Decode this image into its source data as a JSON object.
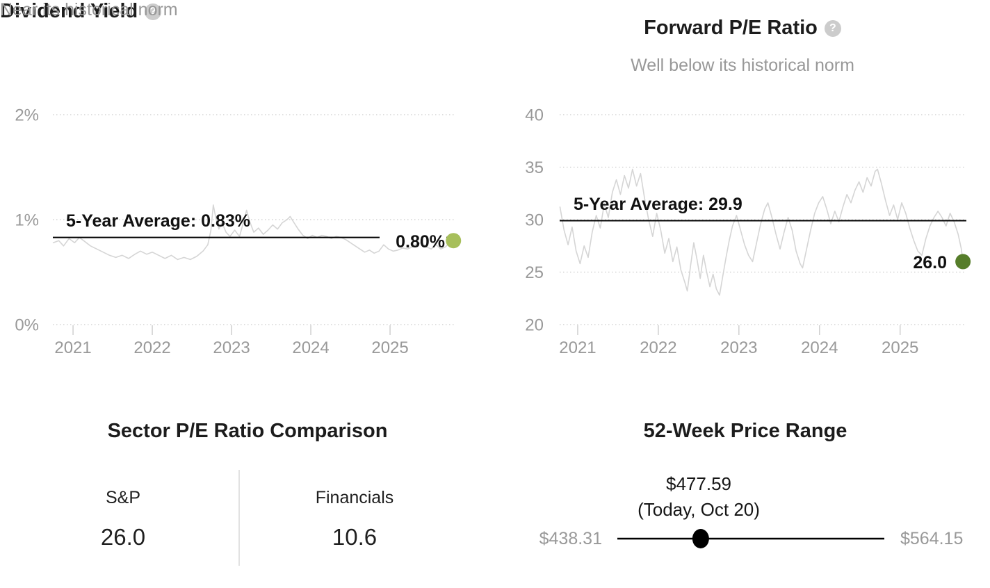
{
  "panels": {
    "dividend_yield": {
      "title": "Dividend Yield",
      "subtitle": "Near its historical norm",
      "help_icon": "?",
      "avg_label": "5-Year Average: 0.83%",
      "current_label": "0.80%"
    },
    "forward_pe": {
      "title": "Forward P/E Ratio",
      "subtitle": "Well below its historical norm",
      "help_icon": "?",
      "avg_label": "5-Year Average: 29.9",
      "current_label": "26.0"
    },
    "sector_comparison": {
      "title": "Sector P/E Ratio Comparison",
      "columns": [
        {
          "label": "S&P",
          "value": "26.0"
        },
        {
          "label": "Financials",
          "value": "10.6"
        }
      ]
    },
    "price_range": {
      "title": "52-Week Price Range",
      "current_price": "$477.59",
      "current_date": "(Today, Oct 20)",
      "low": "$438.31",
      "high": "$564.15"
    }
  },
  "colors": {
    "dividend_dot": "#a7bf5b",
    "pe_dot": "#567d2a",
    "series_line": "#d5d5d5",
    "average_line": "#000000",
    "grid": "#cccccc",
    "axis_text": "#999999"
  },
  "chart_data": [
    {
      "type": "line",
      "title": "Dividend Yield",
      "subtitle": "Near its historical norm",
      "x_range": [
        2020.745,
        2025.833
      ],
      "y_range": [
        0,
        2
      ],
      "grid": true,
      "y_ticks": [
        {
          "v": 0,
          "label": "0%"
        },
        {
          "v": 1,
          "label": "1%"
        },
        {
          "v": 2,
          "label": "2%"
        }
      ],
      "x_ticks": [
        {
          "v": 2021,
          "label": "2021"
        },
        {
          "v": 2022,
          "label": "2022"
        },
        {
          "v": 2023,
          "label": "2023"
        },
        {
          "v": 2024,
          "label": "2024"
        },
        {
          "v": 2025,
          "label": "2025"
        }
      ],
      "average": {
        "value": 0.83,
        "label": "5-Year Average: 0.83%"
      },
      "current": {
        "x": 2025.8,
        "value": 0.8,
        "label": "0.80%",
        "dot_color": "#a7bf5b"
      },
      "line_color": "#d5d5d5",
      "points": [
        [
          2020.75,
          0.78
        ],
        [
          2020.82,
          0.8
        ],
        [
          2020.88,
          0.75
        ],
        [
          2020.95,
          0.82
        ],
        [
          2021.02,
          0.78
        ],
        [
          2021.08,
          0.83
        ],
        [
          2021.15,
          0.79
        ],
        [
          2021.22,
          0.75
        ],
        [
          2021.3,
          0.72
        ],
        [
          2021.38,
          0.69
        ],
        [
          2021.46,
          0.66
        ],
        [
          2021.54,
          0.64
        ],
        [
          2021.62,
          0.66
        ],
        [
          2021.7,
          0.63
        ],
        [
          2021.78,
          0.67
        ],
        [
          2021.85,
          0.7
        ],
        [
          2021.93,
          0.67
        ],
        [
          2022.0,
          0.69
        ],
        [
          2022.08,
          0.66
        ],
        [
          2022.16,
          0.63
        ],
        [
          2022.24,
          0.66
        ],
        [
          2022.32,
          0.62
        ],
        [
          2022.4,
          0.64
        ],
        [
          2022.48,
          0.62
        ],
        [
          2022.56,
          0.65
        ],
        [
          2022.64,
          0.7
        ],
        [
          2022.7,
          0.76
        ],
        [
          2022.74,
          0.9
        ],
        [
          2022.77,
          1.14
        ],
        [
          2022.8,
          1.02
        ],
        [
          2022.84,
          0.91
        ],
        [
          2022.88,
          0.97
        ],
        [
          2022.93,
          0.88
        ],
        [
          2022.98,
          0.84
        ],
        [
          2023.04,
          0.9
        ],
        [
          2023.1,
          0.84
        ],
        [
          2023.16,
          1.0
        ],
        [
          2023.19,
          1.09
        ],
        [
          2023.23,
          0.98
        ],
        [
          2023.28,
          0.88
        ],
        [
          2023.34,
          0.92
        ],
        [
          2023.4,
          0.86
        ],
        [
          2023.46,
          0.9
        ],
        [
          2023.52,
          0.95
        ],
        [
          2023.58,
          0.91
        ],
        [
          2023.64,
          0.97
        ],
        [
          2023.7,
          1.0
        ],
        [
          2023.74,
          1.03
        ],
        [
          2023.78,
          0.98
        ],
        [
          2023.84,
          0.91
        ],
        [
          2023.9,
          0.85
        ],
        [
          2023.96,
          0.82
        ],
        [
          2024.02,
          0.85
        ],
        [
          2024.08,
          0.83
        ],
        [
          2024.14,
          0.85
        ],
        [
          2024.2,
          0.84
        ],
        [
          2024.26,
          0.82
        ],
        [
          2024.32,
          0.84
        ],
        [
          2024.38,
          0.83
        ],
        [
          2024.44,
          0.81
        ],
        [
          2024.5,
          0.78
        ],
        [
          2024.56,
          0.75
        ],
        [
          2024.62,
          0.72
        ],
        [
          2024.68,
          0.69
        ],
        [
          2024.74,
          0.71
        ],
        [
          2024.8,
          0.68
        ],
        [
          2024.86,
          0.7
        ],
        [
          2024.92,
          0.76
        ],
        [
          2024.98,
          0.72
        ],
        [
          2025.04,
          0.7
        ],
        [
          2025.1,
          0.71
        ],
        [
          2025.16,
          0.73
        ],
        [
          2025.22,
          0.72
        ],
        [
          2025.28,
          0.74
        ],
        [
          2025.34,
          0.77
        ],
        [
          2025.4,
          0.78
        ],
        [
          2025.46,
          0.74
        ],
        [
          2025.52,
          0.72
        ],
        [
          2025.58,
          0.76
        ],
        [
          2025.64,
          0.72
        ],
        [
          2025.7,
          0.74
        ],
        [
          2025.76,
          0.79
        ],
        [
          2025.8,
          0.8
        ]
      ]
    },
    {
      "type": "line",
      "title": "Forward P/E Ratio",
      "subtitle": "Well below its historical norm",
      "x_range": [
        2020.776,
        2025.822
      ],
      "y_range": [
        20,
        40
      ],
      "grid": true,
      "y_ticks": [
        {
          "v": 20,
          "label": "20"
        },
        {
          "v": 25,
          "label": "25"
        },
        {
          "v": 30,
          "label": "30"
        },
        {
          "v": 35,
          "label": "35"
        },
        {
          "v": 40,
          "label": "40"
        }
      ],
      "x_ticks": [
        {
          "v": 2021,
          "label": "2021"
        },
        {
          "v": 2022,
          "label": "2022"
        },
        {
          "v": 2023,
          "label": "2023"
        },
        {
          "v": 2024,
          "label": "2024"
        },
        {
          "v": 2025,
          "label": "2025"
        }
      ],
      "average": {
        "value": 29.9,
        "label": "5-Year Average: 29.9"
      },
      "current": {
        "x": 2025.78,
        "value": 26.0,
        "label": "26.0",
        "dot_color": "#567d2a"
      },
      "line_color": "#d5d5d5",
      "points": [
        [
          2020.78,
          31.2
        ],
        [
          2020.83,
          29.0
        ],
        [
          2020.88,
          27.6
        ],
        [
          2020.93,
          29.3
        ],
        [
          2020.98,
          27.0
        ],
        [
          2021.03,
          25.8
        ],
        [
          2021.08,
          27.5
        ],
        [
          2021.13,
          26.4
        ],
        [
          2021.18,
          28.8
        ],
        [
          2021.23,
          30.4
        ],
        [
          2021.28,
          29.2
        ],
        [
          2021.33,
          31.5
        ],
        [
          2021.38,
          30.2
        ],
        [
          2021.43,
          32.6
        ],
        [
          2021.48,
          33.8
        ],
        [
          2021.53,
          32.4
        ],
        [
          2021.58,
          34.2
        ],
        [
          2021.63,
          33.0
        ],
        [
          2021.68,
          34.8
        ],
        [
          2021.73,
          33.2
        ],
        [
          2021.78,
          34.4
        ],
        [
          2021.83,
          32.0
        ],
        [
          2021.88,
          30.0
        ],
        [
          2021.93,
          28.4
        ],
        [
          2021.98,
          30.6
        ],
        [
          2022.03,
          29.0
        ],
        [
          2022.08,
          26.8
        ],
        [
          2022.13,
          28.2
        ],
        [
          2022.18,
          26.0
        ],
        [
          2022.23,
          27.4
        ],
        [
          2022.28,
          25.2
        ],
        [
          2022.33,
          24.0
        ],
        [
          2022.36,
          23.2
        ],
        [
          2022.4,
          25.6
        ],
        [
          2022.44,
          27.8
        ],
        [
          2022.48,
          26.2
        ],
        [
          2022.52,
          24.4
        ],
        [
          2022.56,
          26.6
        ],
        [
          2022.6,
          25.0
        ],
        [
          2022.64,
          23.6
        ],
        [
          2022.68,
          24.8
        ],
        [
          2022.72,
          23.4
        ],
        [
          2022.76,
          22.8
        ],
        [
          2022.8,
          24.6
        ],
        [
          2022.84,
          26.4
        ],
        [
          2022.88,
          28.0
        ],
        [
          2022.92,
          29.4
        ],
        [
          2022.97,
          30.4
        ],
        [
          2023.02,
          29.0
        ],
        [
          2023.07,
          27.6
        ],
        [
          2023.12,
          26.6
        ],
        [
          2023.17,
          26.0
        ],
        [
          2023.22,
          27.8
        ],
        [
          2023.27,
          29.6
        ],
        [
          2023.32,
          31.0
        ],
        [
          2023.36,
          31.6
        ],
        [
          2023.41,
          30.2
        ],
        [
          2023.46,
          28.6
        ],
        [
          2023.51,
          27.2
        ],
        [
          2023.56,
          28.8
        ],
        [
          2023.61,
          30.2
        ],
        [
          2023.66,
          29.0
        ],
        [
          2023.71,
          27.0
        ],
        [
          2023.76,
          25.8
        ],
        [
          2023.79,
          25.4
        ],
        [
          2023.84,
          27.2
        ],
        [
          2023.89,
          29.0
        ],
        [
          2023.94,
          30.6
        ],
        [
          2023.99,
          31.6
        ],
        [
          2024.04,
          32.2
        ],
        [
          2024.09,
          31.0
        ],
        [
          2024.14,
          29.6
        ],
        [
          2024.19,
          30.8
        ],
        [
          2024.24,
          29.8
        ],
        [
          2024.29,
          31.2
        ],
        [
          2024.34,
          32.4
        ],
        [
          2024.39,
          31.6
        ],
        [
          2024.44,
          32.8
        ],
        [
          2024.49,
          33.6
        ],
        [
          2024.54,
          32.6
        ],
        [
          2024.59,
          34.0
        ],
        [
          2024.64,
          33.2
        ],
        [
          2024.69,
          34.6
        ],
        [
          2024.72,
          34.8
        ],
        [
          2024.77,
          33.4
        ],
        [
          2024.82,
          31.8
        ],
        [
          2024.87,
          30.4
        ],
        [
          2024.92,
          31.4
        ],
        [
          2024.97,
          30.0
        ],
        [
          2025.02,
          31.6
        ],
        [
          2025.07,
          30.6
        ],
        [
          2025.12,
          29.2
        ],
        [
          2025.17,
          28.0
        ],
        [
          2025.22,
          27.0
        ],
        [
          2025.27,
          26.6
        ],
        [
          2025.32,
          28.2
        ],
        [
          2025.37,
          29.4
        ],
        [
          2025.42,
          30.2
        ],
        [
          2025.47,
          30.8
        ],
        [
          2025.52,
          30.2
        ],
        [
          2025.57,
          29.4
        ],
        [
          2025.62,
          30.6
        ],
        [
          2025.67,
          29.8
        ],
        [
          2025.72,
          28.6
        ],
        [
          2025.76,
          27.2
        ],
        [
          2025.78,
          26.0
        ]
      ]
    },
    {
      "type": "table",
      "title": "Sector P/E Ratio Comparison",
      "categories": [
        "S&P",
        "Financials"
      ],
      "values": [
        26.0,
        10.6
      ]
    },
    {
      "type": "range",
      "title": "52-Week Price Range",
      "min": 438.31,
      "max": 564.15,
      "current": 477.59,
      "current_date": "Today, Oct 20"
    }
  ]
}
